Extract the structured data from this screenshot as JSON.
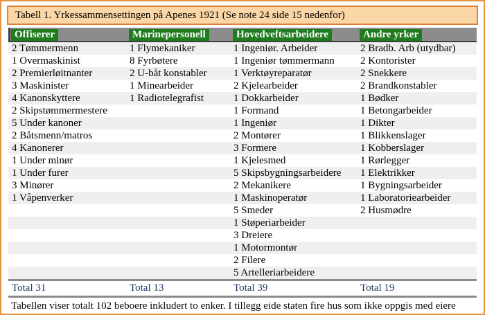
{
  "title": "Tabell 1. Yrkessammensettingen på Apenes 1921 (Se note 24 side 15 nedenfor)",
  "footer": "Tabellen viser totalt 102 beboere inkludert to enker. I tillegg eide staten fire hus som ikke oppgis med eiere",
  "colors": {
    "outer_border": "#E8913F",
    "title_bg": "#FBD6A6",
    "title_border": "#DF8036",
    "header_bar_bg": "#8C8C8C",
    "header_green_bg": "#1E7B1E",
    "header_text": "#FFFFFF",
    "row_alt_bg": "#EFEFEF",
    "total_text": "#1F3864",
    "rule_gray": "#8A8A8A"
  },
  "table": {
    "columns": [
      {
        "header": "Offiserer",
        "total": "Total 31",
        "items": [
          "2 Tømmermenn",
          "1 Overmaskinist",
          "2 Premierløitnanter",
          "3 Maskinister",
          "4 Kanonskyttere",
          "2 Skipstømmermestere",
          "5 Under kanoner",
          "2 Båtsmenn/matros",
          "4 Kanonerer",
          "1 Under minør",
          "1 Under furer",
          "3 Minører",
          "1 Våpenverker"
        ]
      },
      {
        "header": "Marinepersonell",
        "total": "Total 13",
        "items": [
          "1 Flymekaniker",
          "8 Fyrbøtere",
          "2 U-båt konstabler",
          "1 Minearbeider",
          "1 Radiotelegrafist"
        ]
      },
      {
        "header": "Hovedveftsarbeidere",
        "total": "Total 39",
        "items": [
          "1 Ingeniør. Arbeider",
          "1 Ingeniør tømmermann",
          "1 Verktøyreparatør",
          "2 Kjelearbeider",
          "1 Dokkarbeider",
          "1 Formand",
          "1 Ingeniør",
          "2 Montører",
          "3 Formere",
          "1 Kjelesmed",
          "5 Skipsbygningsarbeidere",
          "2 Mekanikere",
          "1 Maskinoperatør",
          "5 Smeder",
          "1 Støperiarbeider",
          "3 Dreiere",
          "1 Motormontør",
          "2 Filere",
          "5 Artelleriarbeidere"
        ]
      },
      {
        "header": "Andre yrker",
        "total": "Total 19",
        "items": [
          "2 Bradb. Arb (utydbar)",
          "2 Kontorister",
          "2 Snekkere",
          "2 Brandkonstabler",
          "1 Bødker",
          "1 Betongarbeider",
          "1 Dikter",
          "1 Blikkenslager",
          "1 Kobberslager",
          "1 Rørlegger",
          "1 Elektrikker",
          "1 Bygningsarbeider",
          "1 Laboratoriearbeider",
          "2 Husmødre"
        ]
      }
    ]
  }
}
